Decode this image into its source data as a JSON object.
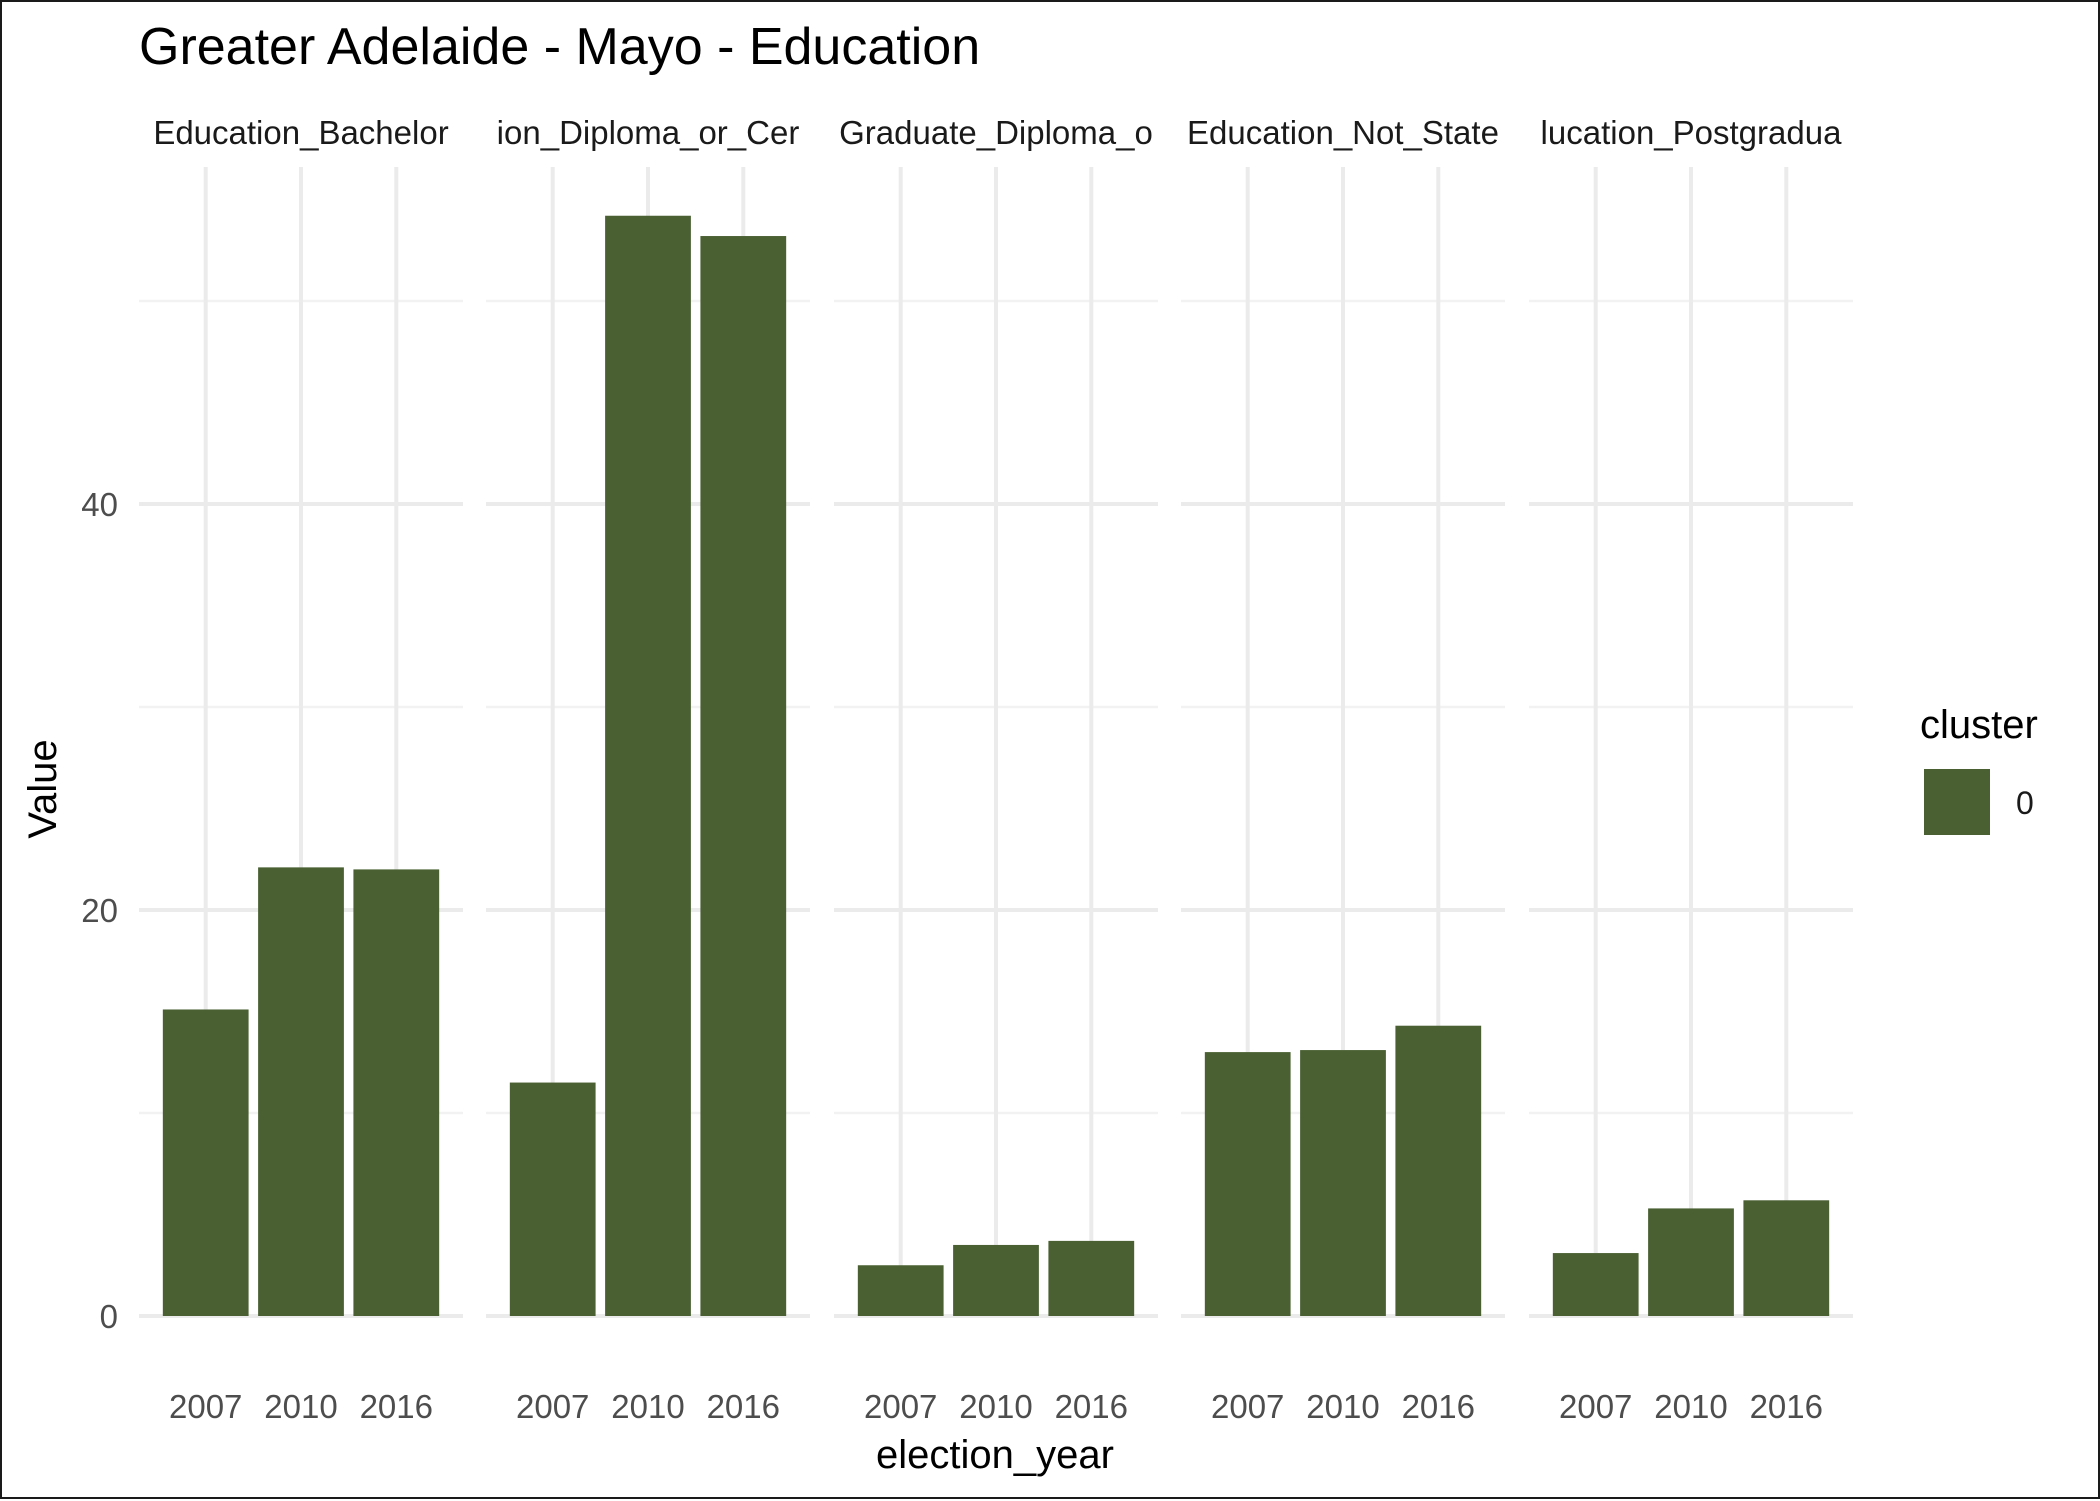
{
  "chart_data": {
    "type": "bar",
    "title": "Greater Adelaide - Mayo - Education",
    "xlabel": "election_year",
    "ylabel": "Value",
    "categories": [
      "2007",
      "2010",
      "2016"
    ],
    "y_ticks": [
      0,
      20,
      40
    ],
    "ylim": [
      0,
      57
    ],
    "grid": true,
    "legend": {
      "title": "cluster",
      "position": "right",
      "entries": [
        {
          "label": "0",
          "color": "#4a6032"
        }
      ]
    },
    "facets": [
      {
        "label": "Education_Bachelor",
        "values": [
          15.1,
          22.1,
          22.0
        ]
      },
      {
        "label": "ion_Diploma_or_Cer",
        "values": [
          11.5,
          54.2,
          53.2
        ]
      },
      {
        "label": "Graduate_Diploma_o",
        "values": [
          2.5,
          3.5,
          3.7
        ]
      },
      {
        "label": "Education_Not_State",
        "values": [
          13.0,
          13.1,
          14.3
        ]
      },
      {
        "label": "lucation_Postgradua",
        "values": [
          3.1,
          5.3,
          5.7
        ]
      }
    ]
  }
}
